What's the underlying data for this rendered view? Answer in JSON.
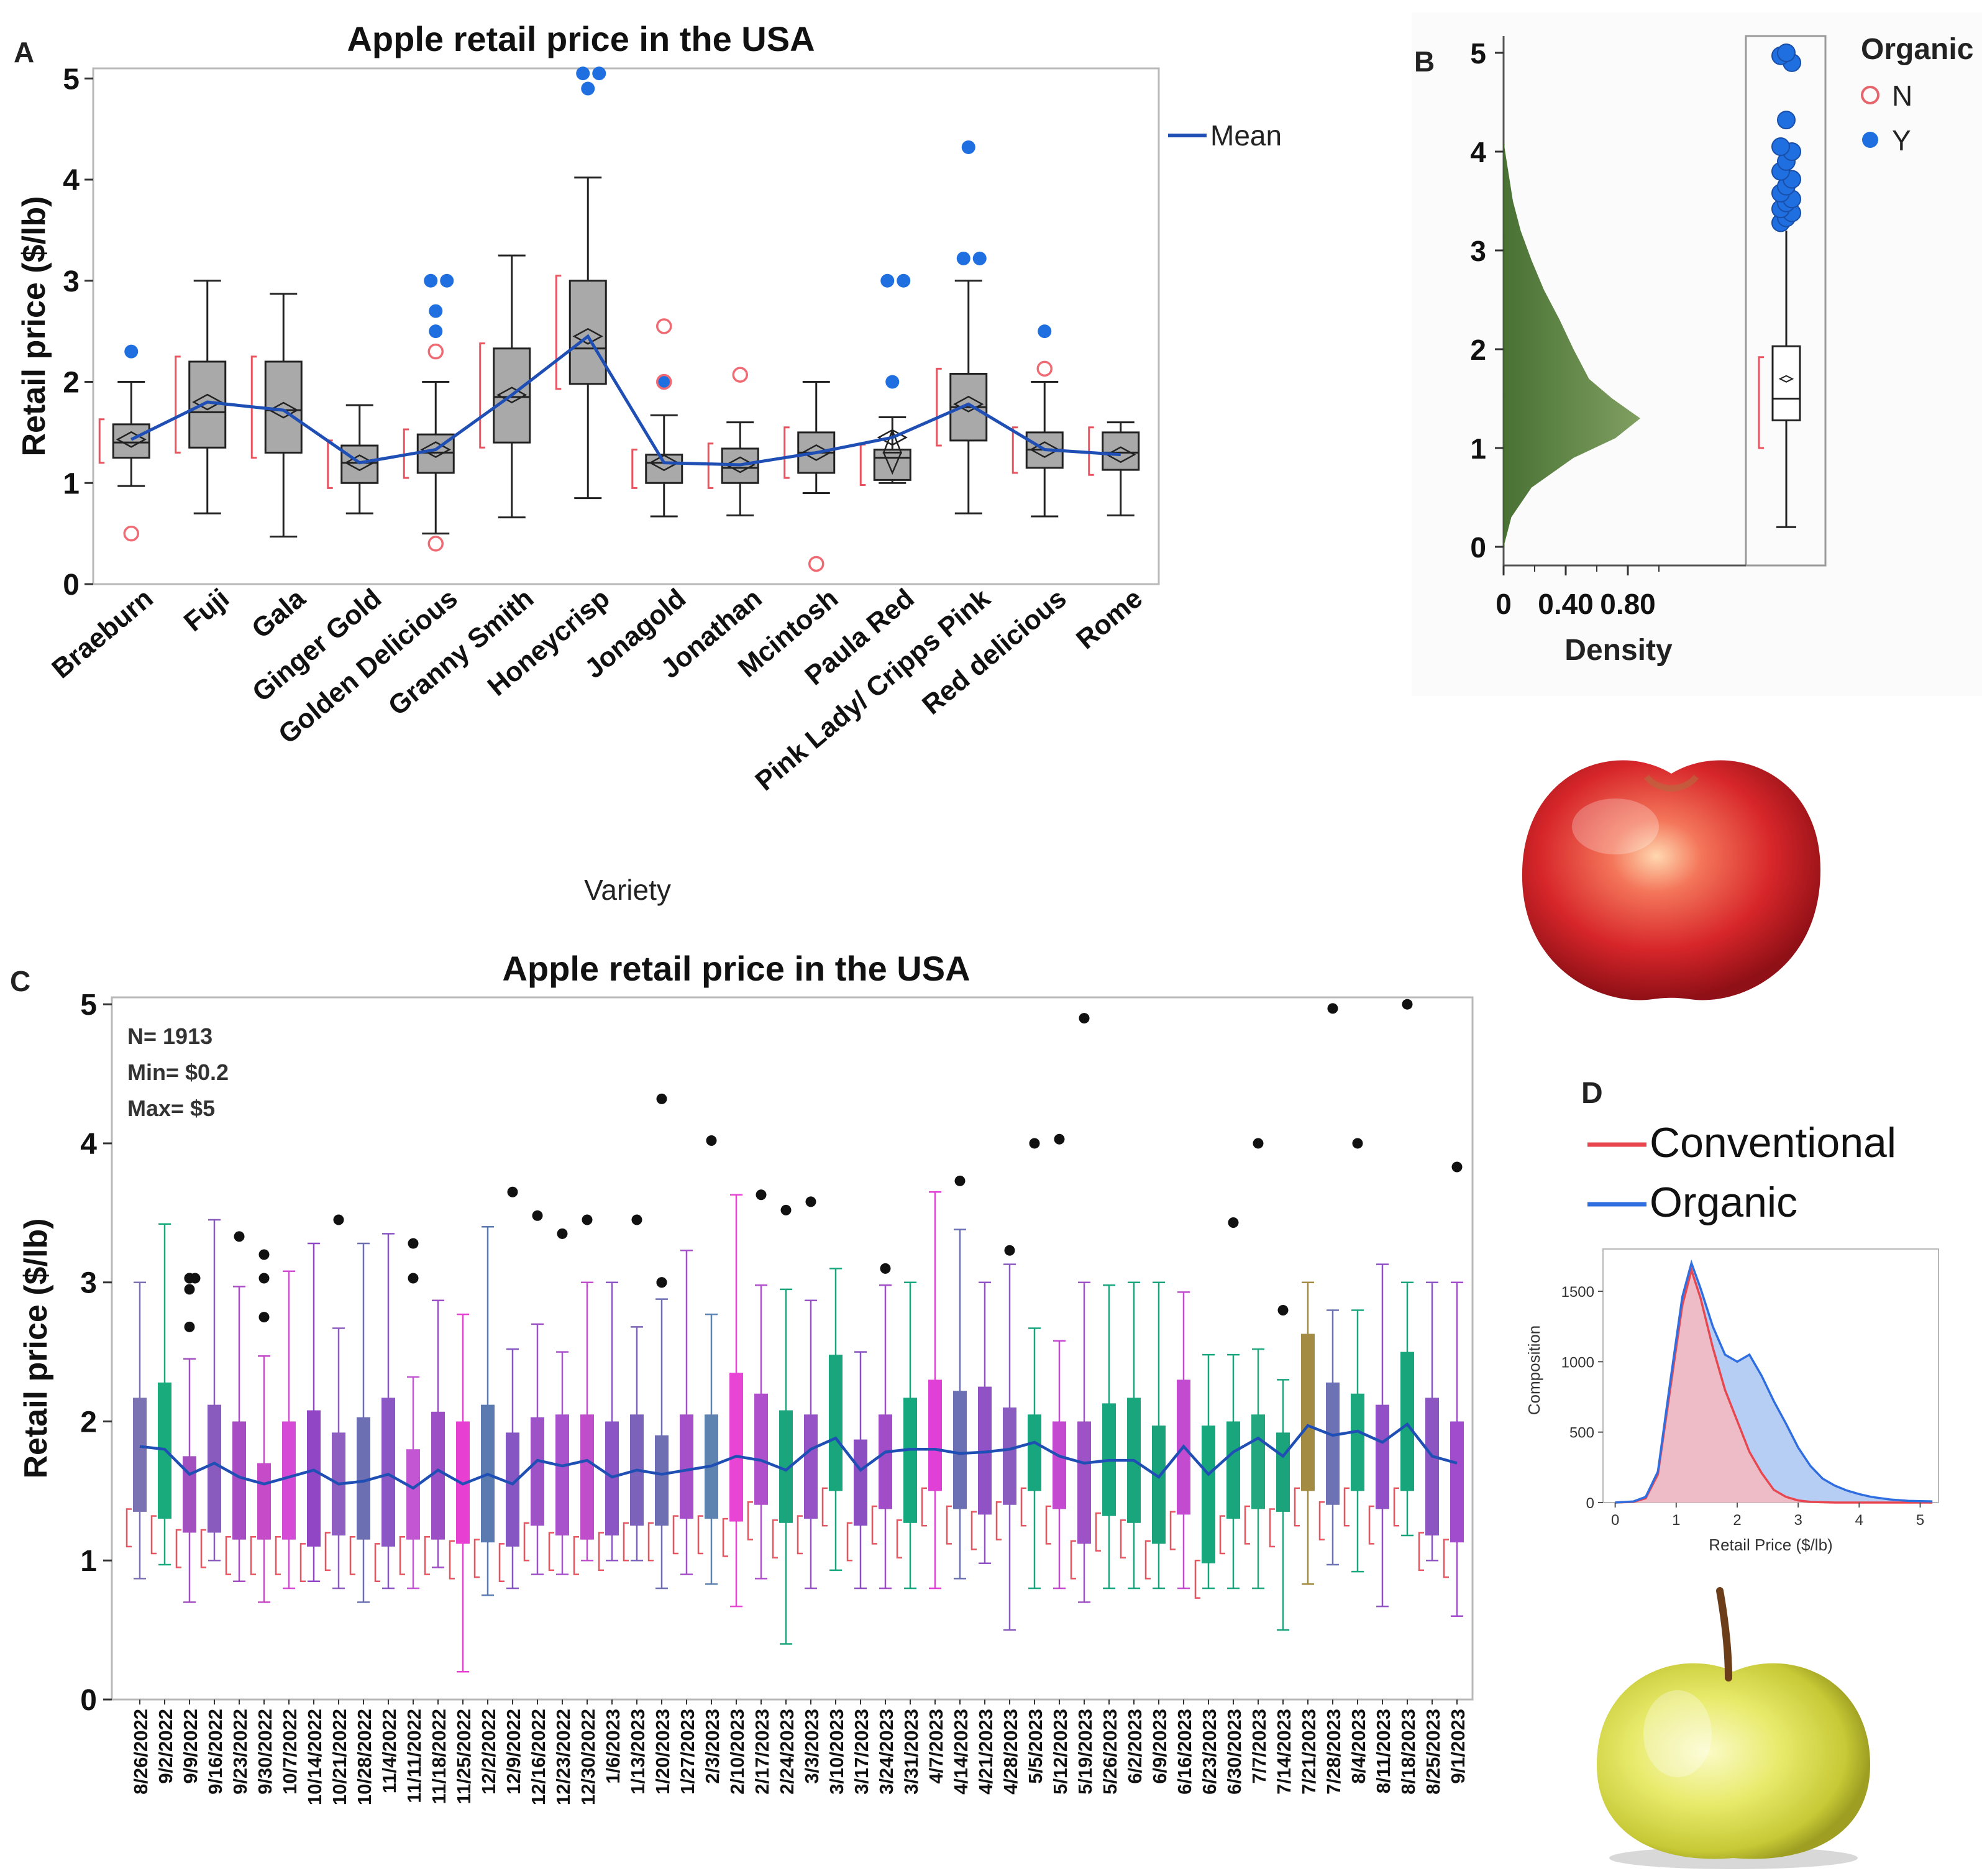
{
  "panels": {
    "a_letter": "A",
    "b_letter": "B",
    "c_letter": "C",
    "d_letter": "D"
  },
  "chart_data": [
    {
      "id": "A",
      "type": "box",
      "title": "Apple retail price in the USA",
      "xlabel": "Variety",
      "ylabel": "Retail price ($/lb)",
      "ylim": [
        0,
        5.1
      ],
      "yticks": [
        "0",
        "1",
        "2",
        "3",
        "4",
        "5"
      ],
      "legend": {
        "label": "Mean",
        "color": "#1f4fb4",
        "position": "right"
      },
      "categories": [
        "Braeburn",
        "Fuji",
        "Gala",
        "Ginger Gold",
        "Golden Delicious",
        "Granny Smith",
        "Honeycrisp",
        "Jonagold",
        "Jonathan",
        "Mcintosh",
        "Paula Red",
        "Pink Lady/ Cripps Pink",
        "Red delicious",
        "Rome"
      ],
      "boxes": [
        {
          "min": 0.97,
          "q1": 1.25,
          "med": 1.4,
          "q3": 1.58,
          "max": 2.0,
          "mean": 1.43,
          "out_n": [
            0.5
          ],
          "out_y": [
            2.3
          ]
        },
        {
          "min": 0.7,
          "q1": 1.35,
          "med": 1.7,
          "q3": 2.2,
          "max": 3.0,
          "mean": 1.8,
          "out_n": [],
          "out_y": []
        },
        {
          "min": 0.47,
          "q1": 1.3,
          "med": 1.72,
          "q3": 2.2,
          "max": 2.87,
          "mean": 1.72,
          "out_n": [],
          "out_y": []
        },
        {
          "min": 0.7,
          "q1": 1.0,
          "med": 1.2,
          "q3": 1.37,
          "max": 1.77,
          "mean": 1.2,
          "out_n": [],
          "out_y": []
        },
        {
          "min": 0.5,
          "q1": 1.1,
          "med": 1.3,
          "q3": 1.48,
          "max": 2.0,
          "mean": 1.33,
          "out_n": [
            0.4,
            2.3
          ],
          "out_y": [
            2.5,
            2.7,
            3.0,
            3.0
          ]
        },
        {
          "min": 0.66,
          "q1": 1.4,
          "med": 1.85,
          "q3": 2.33,
          "max": 3.25,
          "mean": 1.87,
          "out_n": [],
          "out_y": []
        },
        {
          "min": 0.85,
          "q1": 1.98,
          "med": 2.33,
          "q3": 3.0,
          "max": 4.02,
          "mean": 2.45,
          "out_n": [],
          "out_y": [
            4.9,
            5.05,
            5.05
          ]
        },
        {
          "min": 0.67,
          "q1": 1.0,
          "med": 1.2,
          "q3": 1.28,
          "max": 1.67,
          "mean": 1.2,
          "out_n": [
            2.0,
            2.55
          ],
          "out_y": [
            2.0
          ]
        },
        {
          "min": 0.68,
          "q1": 1.0,
          "med": 1.15,
          "q3": 1.34,
          "max": 1.6,
          "mean": 1.18,
          "out_n": [
            2.07
          ],
          "out_y": []
        },
        {
          "min": 0.9,
          "q1": 1.1,
          "med": 1.3,
          "q3": 1.5,
          "max": 2.0,
          "mean": 1.3,
          "out_n": [
            0.2
          ],
          "out_y": []
        },
        {
          "min": 1.0,
          "q1": 1.03,
          "med": 1.25,
          "q3": 1.33,
          "max": 1.65,
          "mean": 1.45,
          "out_n": [],
          "out_y": [
            2.0,
            3.0,
            3.0
          ]
        },
        {
          "min": 0.7,
          "q1": 1.42,
          "med": 1.75,
          "q3": 2.08,
          "max": 3.0,
          "mean": 1.78,
          "out_n": [],
          "out_y": [
            3.22,
            3.22,
            4.32
          ]
        },
        {
          "min": 0.67,
          "q1": 1.15,
          "med": 1.33,
          "q3": 1.5,
          "max": 2.0,
          "mean": 1.33,
          "out_n": [
            2.13
          ],
          "out_y": [
            2.5
          ]
        },
        {
          "min": 0.68,
          "q1": 1.13,
          "med": 1.3,
          "q3": 1.5,
          "max": 1.6,
          "mean": 1.28,
          "out_n": [],
          "out_y": []
        }
      ]
    },
    {
      "id": "B",
      "type": "density",
      "xlabel": "Density",
      "xticks": [
        "0",
        "0.40",
        "0.80"
      ],
      "ylim": [
        0,
        5.1
      ],
      "yticks": [
        "0",
        "1",
        "2",
        "3",
        "4",
        "5"
      ],
      "legend": {
        "title": "Organic",
        "entries": [
          "N",
          "Y"
        ],
        "position": "top-right"
      },
      "density_curve": {
        "y": [
          0,
          0.3,
          0.6,
          0.9,
          1.1,
          1.3,
          1.5,
          1.7,
          2.0,
          2.3,
          2.6,
          2.9,
          3.2,
          3.5,
          3.8,
          4.1
        ],
        "d": [
          0.0,
          0.05,
          0.18,
          0.45,
          0.72,
          0.88,
          0.7,
          0.55,
          0.45,
          0.36,
          0.26,
          0.18,
          0.11,
          0.06,
          0.03,
          0.0
        ]
      },
      "box": {
        "min": 0.2,
        "q1": 1.28,
        "med": 1.5,
        "q3": 2.03,
        "max": 3.2,
        "mean": 1.7
      },
      "outliers_y": [
        3.28,
        3.33,
        3.38,
        3.42,
        3.48,
        3.52,
        3.58,
        3.65,
        3.72,
        3.8,
        3.9,
        4.0,
        4.05,
        4.32,
        4.9,
        4.97,
        5.0
      ]
    },
    {
      "id": "C",
      "type": "box",
      "title": "Apple retail price in the USA",
      "ylabel": "Retail price ($/lb)",
      "ylim": [
        0,
        5.05
      ],
      "yticks": [
        "0",
        "1",
        "2",
        "3",
        "4",
        "5"
      ],
      "annotations": [
        "N= 1913",
        "Min= $0.2",
        "Max= $5"
      ],
      "categories": [
        "8/26/2022",
        "9/2/2022",
        "9/9/2022",
        "9/16/2022",
        "9/23/2022",
        "9/30/2022",
        "10/7/2022",
        "10/14/2022",
        "10/21/2022",
        "10/28/2022",
        "11/4/2022",
        "11/11/2022",
        "11/18/2022",
        "11/25/2022",
        "12/2/2022",
        "12/9/2022",
        "12/16/2022",
        "12/23/2022",
        "12/30/2022",
        "1/6/2023",
        "1/13/2023",
        "1/20/2023",
        "1/27/2023",
        "2/3/2023",
        "2/10/2023",
        "2/17/2023",
        "2/24/2023",
        "3/3/2023",
        "3/10/2023",
        "3/17/2023",
        "3/24/2023",
        "3/31/2023",
        "4/7/2023",
        "4/14/2023",
        "4/21/2023",
        "4/28/2023",
        "5/5/2023",
        "5/12/2023",
        "5/19/2023",
        "5/26/2023",
        "6/2/2023",
        "6/9/2023",
        "6/16/2023",
        "6/23/2023",
        "6/30/2023",
        "7/7/2023",
        "7/14/2023",
        "7/21/2023",
        "7/28/2023",
        "8/4/2023",
        "8/11/2023",
        "8/18/2023",
        "8/25/2023",
        "9/1/2023"
      ],
      "q1": [
        1.35,
        1.3,
        1.2,
        1.2,
        1.15,
        1.15,
        1.15,
        1.1,
        1.18,
        1.15,
        1.1,
        1.15,
        1.15,
        1.12,
        1.13,
        1.1,
        1.25,
        1.18,
        1.15,
        1.18,
        1.25,
        1.25,
        1.3,
        1.3,
        1.28,
        1.4,
        1.27,
        1.3,
        1.5,
        1.25,
        1.37,
        1.27,
        1.5,
        1.37,
        1.33,
        1.4,
        1.5,
        1.37,
        1.12,
        1.32,
        1.27,
        1.12,
        1.33,
        0.98,
        1.3,
        1.37,
        1.35,
        1.5,
        1.4,
        1.5,
        1.37,
        1.5,
        1.18,
        1.13
      ],
      "med": [
        1.8,
        1.8,
        1.55,
        1.65,
        1.6,
        1.5,
        1.55,
        1.6,
        1.5,
        1.55,
        1.6,
        1.5,
        1.65,
        1.5,
        1.6,
        1.5,
        1.7,
        1.7,
        1.75,
        1.6,
        1.65,
        1.6,
        1.65,
        1.7,
        1.75,
        1.7,
        1.65,
        1.75,
        1.9,
        1.65,
        1.75,
        1.8,
        1.8,
        1.75,
        1.75,
        1.8,
        1.85,
        1.75,
        1.7,
        1.7,
        1.7,
        1.6,
        1.8,
        1.6,
        1.75,
        1.9,
        1.75,
        2.0,
        1.9,
        1.95,
        1.85,
        2.0,
        1.7,
        1.7
      ],
      "q3": [
        2.17,
        2.28,
        1.75,
        2.12,
        2.0,
        1.7,
        2.0,
        2.08,
        1.92,
        2.03,
        2.17,
        1.8,
        2.07,
        2.0,
        2.12,
        1.92,
        2.03,
        2.05,
        2.05,
        2.0,
        2.05,
        1.9,
        2.05,
        2.05,
        2.35,
        2.2,
        2.08,
        2.05,
        2.48,
        1.87,
        2.05,
        2.17,
        2.3,
        2.22,
        2.25,
        2.1,
        2.05,
        2.0,
        2.0,
        2.13,
        2.17,
        1.97,
        2.3,
        1.97,
        2.0,
        2.05,
        1.92,
        2.63,
        2.28,
        2.2,
        2.12,
        2.5,
        2.17,
        2.0
      ],
      "mean": [
        1.82,
        1.8,
        1.62,
        1.7,
        1.6,
        1.55,
        1.6,
        1.65,
        1.55,
        1.57,
        1.62,
        1.52,
        1.65,
        1.55,
        1.62,
        1.55,
        1.72,
        1.68,
        1.72,
        1.6,
        1.65,
        1.62,
        1.65,
        1.68,
        1.75,
        1.72,
        1.65,
        1.8,
        1.88,
        1.65,
        1.78,
        1.8,
        1.8,
        1.77,
        1.78,
        1.8,
        1.85,
        1.75,
        1.7,
        1.72,
        1.72,
        1.6,
        1.82,
        1.62,
        1.78,
        1.88,
        1.75,
        1.97,
        1.9,
        1.93,
        1.85,
        1.98,
        1.75,
        1.7
      ],
      "min": [
        0.87,
        0.97,
        0.7,
        1.0,
        0.85,
        0.7,
        0.8,
        0.85,
        0.8,
        0.7,
        0.8,
        0.8,
        0.95,
        0.2,
        0.75,
        0.8,
        0.9,
        0.9,
        1.0,
        1.0,
        1.0,
        0.8,
        0.9,
        0.83,
        0.67,
        0.87,
        0.4,
        0.8,
        0.93,
        0.8,
        0.8,
        0.8,
        0.8,
        0.87,
        0.98,
        0.5,
        0.8,
        0.8,
        0.7,
        0.8,
        0.8,
        0.8,
        0.8,
        0.8,
        0.8,
        0.8,
        0.5,
        0.83,
        0.97,
        0.92,
        0.67,
        1.18,
        1.0,
        0.6
      ],
      "max": [
        3.0,
        3.42,
        2.45,
        3.45,
        2.97,
        2.47,
        3.08,
        3.28,
        2.67,
        3.28,
        3.35,
        2.32,
        2.87,
        2.77,
        3.4,
        2.52,
        2.7,
        2.5,
        3.0,
        3.0,
        2.68,
        2.88,
        3.23,
        2.77,
        3.63,
        2.98,
        2.95,
        2.87,
        3.1,
        2.5,
        2.98,
        3.0,
        3.65,
        3.38,
        3.0,
        3.13,
        2.67,
        2.58,
        3.0,
        2.98,
        3.0,
        3.0,
        2.93,
        2.48,
        2.48,
        2.52,
        2.3,
        3.0,
        2.8,
        2.8,
        3.13,
        3.0,
        3.0,
        3.0
      ],
      "colors": [
        "#7a72b3",
        "#1aab7c",
        "#a24fc0",
        "#8a5bbf",
        "#a84cc4",
        "#c64bc8",
        "#d54bd6",
        "#9146c6",
        "#8e5ec0",
        "#6c6fb2",
        "#8b57c4",
        "#c256d3",
        "#9c4ec5",
        "#e83fd3",
        "#5b7bb0",
        "#8656c2",
        "#9d52c6",
        "#a852cc",
        "#c04ecb",
        "#8c55c6",
        "#7c62ba",
        "#6e6fb3",
        "#a54fc8",
        "#5e83b1",
        "#e845d5",
        "#b04fcb",
        "#1aa57c",
        "#9553c6",
        "#1aa67c",
        "#8b4fc2",
        "#a04dc7",
        "#15a77d",
        "#e040d5",
        "#6a70b3",
        "#9152c5",
        "#8b5cbf",
        "#17a67d",
        "#c44bd0",
        "#9d53c5",
        "#17a67d",
        "#1aa67c",
        "#1aa27b",
        "#c24bd0",
        "#17a77d",
        "#1aa67c",
        "#23a77f",
        "#1ba37c",
        "#a38b43",
        "#6d72b4",
        "#1ba87e",
        "#9150c6",
        "#19a57c",
        "#8c56c2",
        "#a04ccc"
      ],
      "outliers": [
        {
          "i": 2,
          "v": [
            2.68,
            2.95,
            3.03,
            3.03,
            3.03
          ]
        },
        {
          "i": 4,
          "v": [
            3.33
          ]
        },
        {
          "i": 5,
          "v": [
            2.75,
            3.03,
            3.2
          ]
        },
        {
          "i": 8,
          "v": [
            3.45
          ]
        },
        {
          "i": 11,
          "v": [
            3.03,
            3.28
          ]
        },
        {
          "i": 15,
          "v": [
            3.65
          ]
        },
        {
          "i": 16,
          "v": [
            3.48
          ]
        },
        {
          "i": 17,
          "v": [
            3.35
          ]
        },
        {
          "i": 18,
          "v": [
            3.45
          ]
        },
        {
          "i": 20,
          "v": [
            3.45
          ]
        },
        {
          "i": 21,
          "v": [
            3.0,
            3.0,
            4.32
          ]
        },
        {
          "i": 23,
          "v": [
            4.02
          ]
        },
        {
          "i": 25,
          "v": [
            3.63
          ]
        },
        {
          "i": 26,
          "v": [
            3.52
          ]
        },
        {
          "i": 27,
          "v": [
            3.58
          ]
        },
        {
          "i": 30,
          "v": [
            3.1
          ]
        },
        {
          "i": 33,
          "v": [
            3.73
          ]
        },
        {
          "i": 35,
          "v": [
            3.23
          ]
        },
        {
          "i": 36,
          "v": [
            4.0
          ]
        },
        {
          "i": 37,
          "v": [
            4.03
          ]
        },
        {
          "i": 38,
          "v": [
            4.9
          ]
        },
        {
          "i": 44,
          "v": [
            3.43
          ]
        },
        {
          "i": 45,
          "v": [
            4.0
          ]
        },
        {
          "i": 46,
          "v": [
            2.8
          ]
        },
        {
          "i": 48,
          "v": [
            4.97
          ]
        },
        {
          "i": 49,
          "v": [
            4.0
          ]
        },
        {
          "i": 51,
          "v": [
            5.0
          ]
        },
        {
          "i": 53,
          "v": [
            3.83
          ]
        }
      ]
    },
    {
      "id": "D",
      "type": "area",
      "xlabel": "Retail Price ($/lb)",
      "ylabel": "Composition",
      "xlim": [
        -0.2,
        5.3
      ],
      "ylim": [
        0,
        1800
      ],
      "xticks": [
        "0",
        "1",
        "2",
        "3",
        "4",
        "5"
      ],
      "yticks": [
        "0",
        "500",
        "1000",
        "1500"
      ],
      "legend": {
        "entries": [
          "Conventional",
          "Organic"
        ],
        "colors": [
          "#e8474f",
          "#2f6ee0"
        ],
        "position": "top"
      },
      "x": [
        0,
        0.3,
        0.5,
        0.7,
        0.9,
        1.1,
        1.25,
        1.4,
        1.6,
        1.8,
        2.0,
        2.2,
        2.4,
        2.6,
        2.8,
        3.0,
        3.2,
        3.4,
        3.6,
        3.8,
        4.0,
        4.2,
        4.5,
        4.8,
        5.0,
        5.2
      ],
      "series": [
        {
          "name": "Conventional",
          "values": [
            0,
            5,
            30,
            200,
            800,
            1400,
            1650,
            1450,
            1100,
            800,
            580,
            360,
            210,
            90,
            40,
            15,
            5,
            2,
            0,
            0,
            0,
            0,
            0,
            0,
            0,
            0
          ]
        },
        {
          "name": "Organic",
          "values": [
            0,
            8,
            40,
            220,
            850,
            1460,
            1700,
            1520,
            1250,
            1050,
            1000,
            1050,
            900,
            720,
            560,
            390,
            260,
            170,
            120,
            85,
            60,
            40,
            22,
            12,
            10,
            8
          ]
        }
      ]
    }
  ]
}
